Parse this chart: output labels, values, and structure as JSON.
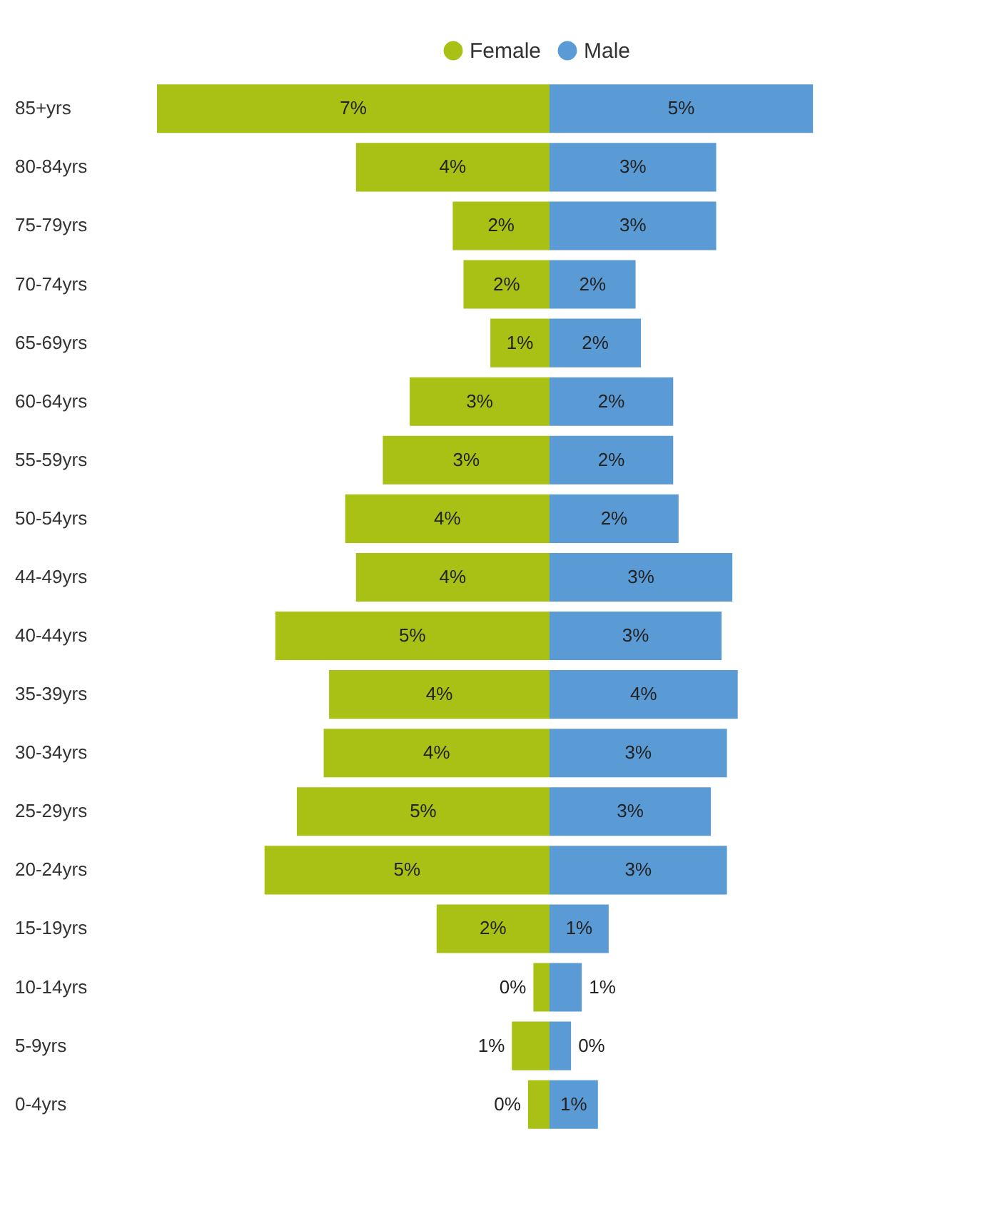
{
  "chart_data": [
    {
      "type": "bar",
      "orientation": "horizontal",
      "legend": "top right",
      "categories": [
        "85+yrs",
        "80-84yrs",
        "75-79yrs",
        "70-74yrs",
        "65-69yrs",
        "60-64yrs",
        "55-59yrs",
        "50-54yrs",
        "44-49yrs",
        "40-44yrs",
        "35-39yrs",
        "30-34yrs",
        "25-29yrs",
        "20-24yrs",
        "15-19yrs",
        "10-14yrs",
        "5-9yrs",
        "0-4yrs"
      ],
      "series": [
        {
          "name": "Female",
          "color": "#a9c015",
          "values": [
            7.3,
            3.6,
            1.8,
            1.6,
            1.1,
            2.6,
            3.1,
            3.8,
            3.6,
            5.1,
            4.1,
            4.2,
            4.7,
            5.3,
            2.1,
            0.3,
            0.7,
            0.4
          ],
          "value_labels": [
            "7%",
            "4%",
            "2%",
            "2%",
            "1%",
            "3%",
            "3%",
            "4%",
            "4%",
            "5%",
            "4%",
            "4%",
            "5%",
            "5%",
            "2%",
            "0%",
            "1%",
            "0%"
          ]
        }
      ]
    },
    {
      "type": "bar",
      "orientation": "horizontal",
      "legend": "top left",
      "tick_labels": false,
      "categories": [
        "85+yrs",
        "80-84yrs",
        "75-79yrs",
        "70-74yrs",
        "65-69yrs",
        "60-64yrs",
        "55-59yrs",
        "50-54yrs",
        "44-49yrs",
        "40-44yrs",
        "35-39yrs",
        "30-34yrs",
        "25-29yrs",
        "20-24yrs",
        "15-19yrs",
        "10-14yrs",
        "5-9yrs",
        "0-4yrs"
      ],
      "series": [
        {
          "name": "Male",
          "color": "#5b9bd5",
          "values": [
            4.9,
            3.1,
            3.1,
            1.6,
            1.7,
            2.3,
            2.3,
            2.4,
            3.4,
            3.2,
            3.5,
            3.3,
            3.0,
            3.3,
            1.1,
            0.6,
            0.4,
            0.9
          ],
          "value_labels": [
            "5%",
            "3%",
            "3%",
            "2%",
            "2%",
            "2%",
            "2%",
            "2%",
            "3%",
            "3%",
            "4%",
            "3%",
            "3%",
            "3%",
            "1%",
            "1%",
            "0%",
            "1%"
          ]
        }
      ]
    }
  ]
}
